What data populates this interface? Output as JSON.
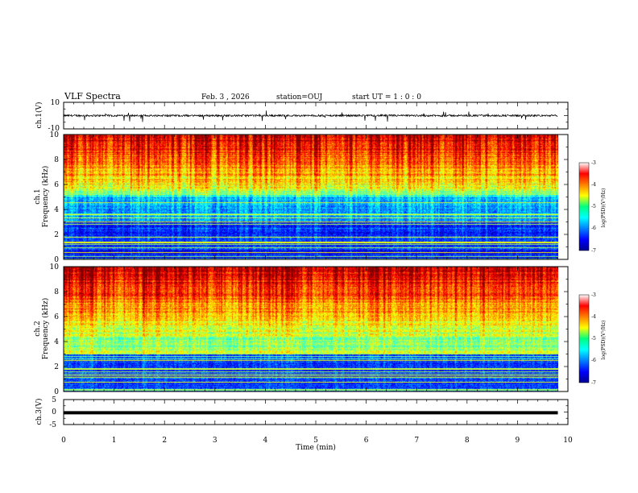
{
  "header": {
    "title": "VLF Spectra",
    "date": "Feb. 3  , 2026",
    "station": "station=OUJ",
    "start": "start  UT =  1 : 0  : 0"
  },
  "chart_data": [
    {
      "type": "line",
      "name": "ch1-waveform",
      "ylabel": "ch.1(V)",
      "ylim": [
        -10,
        10
      ],
      "yticks": [
        "10",
        "-10"
      ],
      "xlim": [
        0,
        10
      ],
      "baseline": 0,
      "note_values": "noisy waveform approx. -0.5 to 0.8 V with occasional negative spikes to about -5 V"
    },
    {
      "type": "heatmap",
      "name": "ch1-spectrogram",
      "ylabel": "ch.1\nFrequency  (kHz)",
      "ylim": [
        0,
        10
      ],
      "yticks": [
        "0",
        "2",
        "4",
        "6",
        "8",
        "10"
      ],
      "xlim": [
        0,
        9.8
      ],
      "colorbar": {
        "label": "log(PSD)(V²/Hz)",
        "range": [
          -7,
          -3
        ],
        "ticks": [
          "-3",
          "-4",
          "-5",
          "-6",
          "-7"
        ]
      }
    },
    {
      "type": "heatmap",
      "name": "ch2-spectrogram",
      "ylabel": "ch.2\nFrequency  (kHz)",
      "ylim": [
        0,
        10
      ],
      "yticks": [
        "0",
        "2",
        "4",
        "6",
        "8",
        "10"
      ],
      "xlim": [
        0,
        9.8
      ],
      "colorbar": {
        "label": "log(PSD)(V²/Hz)",
        "range": [
          -7,
          -3
        ],
        "ticks": [
          "-3",
          "-4",
          "-5",
          "-6",
          "-7"
        ]
      }
    },
    {
      "type": "line",
      "name": "ch3-waveform",
      "ylabel": "ch.3(V)",
      "ylim": [
        -5,
        5
      ],
      "yticks": [
        "5",
        "0",
        "-5"
      ],
      "xlim": [
        0,
        9.8
      ],
      "values": {
        "x": [
          0,
          9.8
        ],
        "y": [
          -0.3,
          -0.3
        ]
      }
    }
  ],
  "xaxis": {
    "label": "Time  (min)",
    "ticks": [
      "0",
      "1",
      "2",
      "3",
      "4",
      "5",
      "6",
      "7",
      "8",
      "9",
      "10"
    ],
    "range": [
      0,
      10
    ]
  }
}
